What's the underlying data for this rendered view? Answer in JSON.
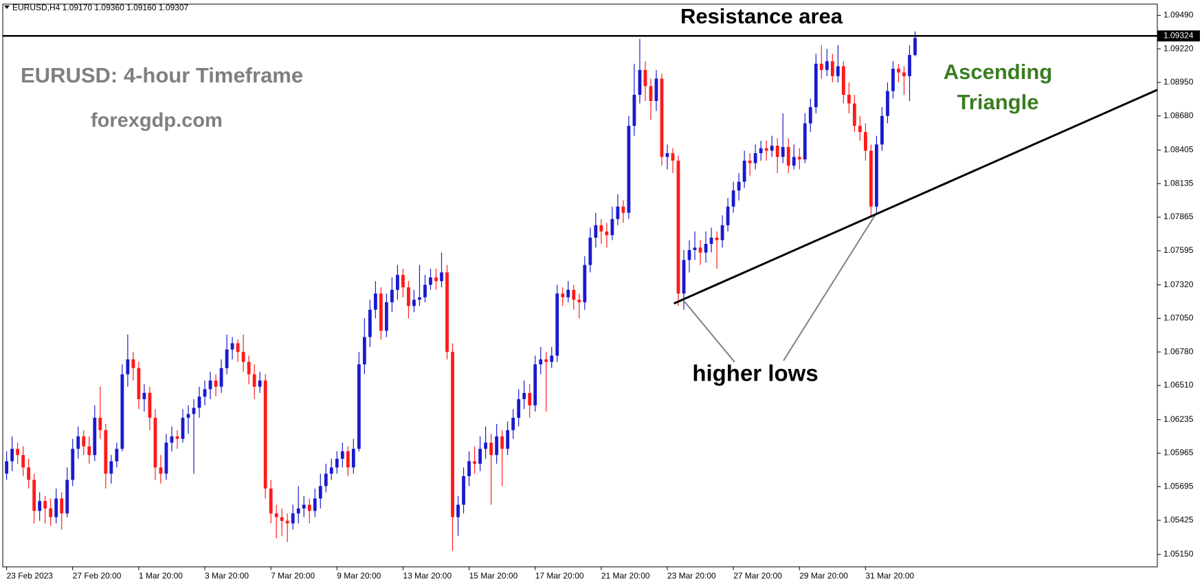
{
  "chart_data": {
    "type": "candlestick",
    "header": "EURUSD,H4  1.09170 1.09360 1.09160 1.09307",
    "title": "Resistance area",
    "subtitle": "EURUSD: 4-hour Timeframe",
    "source": "forexgdp.com",
    "pattern_label": [
      "Ascending",
      "Triangle"
    ],
    "annotation": "higher lows",
    "up_color": "#1a1acf",
    "down_color": "#ff1a1a",
    "xlim": [
      -0.7,
      209
    ],
    "ylim": [
      1.0505,
      1.0958
    ],
    "xticks": [
      {
        "value": 0,
        "label": "23 Feb 2023"
      },
      {
        "value": 12,
        "label": "27 Feb 20:00"
      },
      {
        "value": 24,
        "label": "1 Mar 20:00"
      },
      {
        "value": 36,
        "label": "3 Mar 20:00"
      },
      {
        "value": 48,
        "label": "7 Mar 20:00"
      },
      {
        "value": 60,
        "label": "9 Mar 20:00"
      },
      {
        "value": 72,
        "label": "13 Mar 20:00"
      },
      {
        "value": 84,
        "label": "15 Mar 20:00"
      },
      {
        "value": 96,
        "label": "17 Mar 20:00"
      },
      {
        "value": 108,
        "label": "21 Mar 20:00"
      },
      {
        "value": 120,
        "label": "23 Mar 20:00"
      },
      {
        "value": 132,
        "label": "27 Mar 20:00"
      },
      {
        "value": 144,
        "label": "29 Mar 20:00"
      },
      {
        "value": 156,
        "label": "31 Mar 20:00"
      }
    ],
    "yticks": [
      {
        "value": 1.0949,
        "label": "1.09490"
      },
      {
        "value": 1.0922,
        "label": "1.09220"
      },
      {
        "value": 1.0895,
        "label": "1.08950"
      },
      {
        "value": 1.0868,
        "label": "1.08680"
      },
      1.08405,
      1.08135,
      1.07865,
      1.07595,
      {
        "value": 1.0732,
        "label": "1.07320"
      },
      {
        "value": 1.0705,
        "label": "1.07050"
      },
      {
        "value": 1.0678,
        "label": "1.06780"
      },
      {
        "value": 1.0651,
        "label": "1.06510"
      },
      1.06235,
      1.05965,
      1.05695,
      1.05425,
      {
        "value": 1.0515,
        "label": "1.05150"
      }
    ],
    "resistance_level": {
      "value": 1.09324,
      "label": "1.09324"
    },
    "trendline": {
      "x": [
        121.2,
        209
      ],
      "y": [
        1.0717,
        1.0889
      ]
    },
    "ohlc": [
      [
        1.058,
        1.0598,
        1.0575,
        1.059
      ],
      [
        1.059,
        1.061,
        1.0582,
        1.06
      ],
      [
        1.06,
        1.0605,
        1.0588,
        1.0595
      ],
      [
        1.0595,
        1.0602,
        1.0578,
        1.0585
      ],
      [
        1.0585,
        1.0592,
        1.0568,
        1.0575
      ],
      [
        1.0575,
        1.058,
        1.054,
        1.055
      ],
      [
        1.055,
        1.0565,
        1.0542,
        1.0558
      ],
      [
        1.0558,
        1.0562,
        1.054,
        1.0552
      ],
      [
        1.0552,
        1.056,
        1.0538,
        1.0545
      ],
      [
        1.0545,
        1.0568,
        1.054,
        1.056
      ],
      [
        1.056,
        1.0565,
        1.0535,
        1.0548
      ],
      [
        1.0548,
        1.0585,
        1.0545,
        1.0575
      ],
      [
        1.0575,
        1.0608,
        1.057,
        1.06
      ],
      [
        1.06,
        1.0618,
        1.0592,
        1.061
      ],
      [
        1.061,
        1.0615,
        1.0595,
        1.0602
      ],
      [
        1.0602,
        1.061,
        1.0588,
        1.0595
      ],
      [
        1.0595,
        1.0635,
        1.059,
        1.0625
      ],
      [
        1.0625,
        1.065,
        1.0608,
        1.0615
      ],
      [
        1.0615,
        1.062,
        1.0568,
        1.058
      ],
      [
        1.058,
        1.0595,
        1.0572,
        1.059
      ],
      [
        1.059,
        1.0605,
        1.0585,
        1.06
      ],
      [
        1.06,
        1.0668,
        1.0598,
        1.066
      ],
      [
        1.066,
        1.0692,
        1.065,
        1.0672
      ],
      [
        1.0672,
        1.0678,
        1.0655,
        1.0665
      ],
      [
        1.0665,
        1.067,
        1.0632,
        1.064
      ],
      [
        1.064,
        1.0652,
        1.063,
        1.0645
      ],
      [
        1.0645,
        1.065,
        1.0615,
        1.0625
      ],
      [
        1.0625,
        1.0632,
        1.0575,
        1.0585
      ],
      [
        1.0585,
        1.0595,
        1.0572,
        1.058
      ],
      [
        1.058,
        1.0612,
        1.0575,
        1.0605
      ],
      [
        1.0605,
        1.0618,
        1.0598,
        1.061
      ],
      [
        1.061,
        1.0615,
        1.06,
        1.0608
      ],
      [
        1.0608,
        1.0632,
        1.0605,
        1.0625
      ],
      [
        1.0625,
        1.0635,
        1.0612,
        1.0628
      ],
      [
        1.0628,
        1.064,
        1.058,
        1.0633
      ],
      [
        1.0633,
        1.065,
        1.0625,
        1.0642
      ],
      [
        1.0642,
        1.0655,
        1.0635,
        1.0648
      ],
      [
        1.0648,
        1.0662,
        1.064,
        1.0655
      ],
      [
        1.0655,
        1.066,
        1.0642,
        1.065
      ],
      [
        1.065,
        1.0672,
        1.0645,
        1.0665
      ],
      [
        1.0665,
        1.0692,
        1.066,
        1.068
      ],
      [
        1.068,
        1.069,
        1.0672,
        1.0685
      ],
      [
        1.0685,
        1.0688,
        1.067,
        1.0678
      ],
      [
        1.0678,
        1.0692,
        1.0662,
        1.067
      ],
      [
        1.067,
        1.0675,
        1.0652,
        1.066
      ],
      [
        1.066,
        1.0668,
        1.064,
        1.065
      ],
      [
        1.065,
        1.0662,
        1.0645,
        1.0655
      ],
      [
        1.0655,
        1.066,
        1.056,
        1.0568
      ],
      [
        1.0568,
        1.0575,
        1.054,
        1.0548
      ],
      [
        1.0548,
        1.0555,
        1.0528,
        1.0545
      ],
      [
        1.0545,
        1.0552,
        1.053,
        1.0542
      ],
      [
        1.0542,
        1.0548,
        1.0525,
        1.054
      ],
      [
        1.054,
        1.0555,
        1.0535,
        1.0548
      ],
      [
        1.0548,
        1.057,
        1.054,
        1.0552
      ],
      [
        1.0552,
        1.0562,
        1.0545,
        1.0555
      ],
      [
        1.0555,
        1.056,
        1.054,
        1.055
      ],
      [
        1.055,
        1.0568,
        1.0545,
        1.056
      ],
      [
        1.056,
        1.058,
        1.0552,
        1.057
      ],
      [
        1.057,
        1.0588,
        1.0565,
        1.058
      ],
      [
        1.058,
        1.0592,
        1.0575,
        1.0585
      ],
      [
        1.0585,
        1.0598,
        1.058,
        1.0592
      ],
      [
        1.0592,
        1.0605,
        1.0585,
        1.0598
      ],
      [
        1.0598,
        1.0602,
        1.0578,
        1.0585
      ],
      [
        1.0585,
        1.0608,
        1.058,
        1.06
      ],
      [
        1.06,
        1.0678,
        1.0598,
        1.0668
      ],
      [
        1.0668,
        1.0705,
        1.066,
        1.069
      ],
      [
        1.069,
        1.072,
        1.0682,
        1.0712
      ],
      [
        1.0712,
        1.0735,
        1.0705,
        1.0725
      ],
      [
        1.0725,
        1.073,
        1.0688,
        1.0695
      ],
      [
        1.0695,
        1.0725,
        1.069,
        1.0718
      ],
      [
        1.0718,
        1.0738,
        1.071,
        1.0728
      ],
      [
        1.0728,
        1.0748,
        1.072,
        1.074
      ],
      [
        1.074,
        1.0745,
        1.0722,
        1.073
      ],
      [
        1.073,
        1.0735,
        1.0705,
        1.0715
      ],
      [
        1.0715,
        1.0728,
        1.071,
        1.072
      ],
      [
        1.072,
        1.0748,
        1.0715,
        1.0722
      ],
      [
        1.0722,
        1.074,
        1.0718,
        1.0732
      ],
      [
        1.0732,
        1.0745,
        1.0728,
        1.0738
      ],
      [
        1.0738,
        1.0745,
        1.0728,
        1.0735
      ],
      [
        1.0735,
        1.0758,
        1.073,
        1.0742
      ],
      [
        1.0742,
        1.0748,
        1.0672,
        1.0678
      ],
      [
        1.0678,
        1.0685,
        1.0518,
        1.0545
      ],
      [
        1.0545,
        1.0562,
        1.053,
        1.0555
      ],
      [
        1.0555,
        1.0585,
        1.0548,
        1.0578
      ],
      [
        1.0578,
        1.0598,
        1.057,
        1.059
      ],
      [
        1.059,
        1.0602,
        1.058,
        1.0588
      ],
      [
        1.0588,
        1.061,
        1.0582,
        1.06
      ],
      [
        1.06,
        1.0618,
        1.0592,
        1.0605
      ],
      [
        1.0605,
        1.0612,
        1.0555,
        1.0595
      ],
      [
        1.0595,
        1.062,
        1.0588,
        1.061
      ],
      [
        1.061,
        1.0615,
        1.057,
        1.06
      ],
      [
        1.06,
        1.0622,
        1.0595,
        1.0615
      ],
      [
        1.0615,
        1.0632,
        1.0608,
        1.0625
      ],
      [
        1.0625,
        1.0648,
        1.0618,
        1.064
      ],
      [
        1.064,
        1.0655,
        1.0632,
        1.0645
      ],
      [
        1.0645,
        1.0652,
        1.0625,
        1.0635
      ],
      [
        1.0635,
        1.0675,
        1.063,
        1.0668
      ],
      [
        1.0668,
        1.0682,
        1.066,
        1.0672
      ],
      [
        1.0672,
        1.0678,
        1.063,
        1.067
      ],
      [
        1.067,
        1.0682,
        1.0665,
        1.0675
      ],
      [
        1.0675,
        1.0732,
        1.067,
        1.0725
      ],
      [
        1.0725,
        1.073,
        1.0715,
        1.0722
      ],
      [
        1.0722,
        1.0735,
        1.0718,
        1.0728
      ],
      [
        1.0728,
        1.0732,
        1.0712,
        1.072
      ],
      [
        1.072,
        1.0725,
        1.0705,
        1.0718
      ],
      [
        1.0718,
        1.0755,
        1.0712,
        1.0748
      ],
      [
        1.0748,
        1.0778,
        1.0742,
        1.077
      ],
      [
        1.077,
        1.079,
        1.0762,
        1.078
      ],
      [
        1.078,
        1.0785,
        1.0765,
        1.0775
      ],
      [
        1.0775,
        1.0782,
        1.0762,
        1.0772
      ],
      [
        1.0772,
        1.0795,
        1.0768,
        1.0785
      ],
      [
        1.0785,
        1.0805,
        1.078,
        1.0795
      ],
      [
        1.0795,
        1.08,
        1.0782,
        1.079
      ],
      [
        1.079,
        1.0868,
        1.0785,
        1.086
      ],
      [
        1.086,
        1.091,
        1.0852,
        1.0885
      ],
      [
        1.0885,
        1.093,
        1.0878,
        1.0905
      ],
      [
        1.0905,
        1.0912,
        1.088,
        1.0892
      ],
      [
        1.0892,
        1.0898,
        1.0865,
        1.088
      ],
      [
        1.088,
        1.0905,
        1.0872,
        1.0898
      ],
      [
        1.0898,
        1.0902,
        1.0828,
        1.0835
      ],
      [
        1.0835,
        1.0845,
        1.0825,
        1.0838
      ],
      [
        1.0838,
        1.0842,
        1.0822,
        1.0832
      ],
      [
        1.0832,
        1.0836,
        1.0715,
        1.0725
      ],
      [
        1.0725,
        1.076,
        1.0712,
        1.0752
      ],
      [
        1.0752,
        1.0768,
        1.0742,
        1.076
      ],
      [
        1.076,
        1.0775,
        1.0752,
        1.0762
      ],
      [
        1.0762,
        1.0768,
        1.0748,
        1.0758
      ],
      [
        1.0758,
        1.0775,
        1.075,
        1.0765
      ],
      [
        1.0765,
        1.0778,
        1.0758,
        1.077
      ],
      [
        1.077,
        1.0775,
        1.0745,
        1.0768
      ],
      [
        1.0768,
        1.0788,
        1.0762,
        1.078
      ],
      [
        1.078,
        1.0802,
        1.0775,
        1.0795
      ],
      [
        1.0795,
        1.0815,
        1.079,
        1.0808
      ],
      [
        1.0808,
        1.0822,
        1.08,
        1.0815
      ],
      [
        1.0815,
        1.084,
        1.081,
        1.0832
      ],
      [
        1.0832,
        1.0838,
        1.082,
        1.083
      ],
      [
        1.083,
        1.0845,
        1.0825,
        1.0838
      ],
      [
        1.0838,
        1.0848,
        1.0832,
        1.0842
      ],
      [
        1.0842,
        1.0848,
        1.0832,
        1.084
      ],
      [
        1.084,
        1.0852,
        1.0835,
        1.0844
      ],
      [
        1.0844,
        1.085,
        1.0822,
        1.0835
      ],
      [
        1.0835,
        1.087,
        1.083,
        1.0843
      ],
      [
        1.0843,
        1.085,
        1.0822,
        1.0828
      ],
      [
        1.0828,
        1.0845,
        1.0825,
        1.0835
      ],
      [
        1.0835,
        1.0842,
        1.0825,
        1.0833
      ],
      [
        1.0833,
        1.087,
        1.083,
        1.0862
      ],
      [
        1.0862,
        1.0882,
        1.0855,
        1.0875
      ],
      [
        1.0875,
        1.0918,
        1.087,
        1.091
      ],
      [
        1.091,
        1.0925,
        1.0898,
        1.0905
      ],
      [
        1.0905,
        1.0922,
        1.09,
        1.0912
      ],
      [
        1.0912,
        1.0918,
        1.0895,
        1.09
      ],
      [
        1.09,
        1.0925,
        1.0895,
        1.0908
      ],
      [
        1.0908,
        1.0912,
        1.0878,
        1.0885
      ],
      [
        1.0885,
        1.0895,
        1.087,
        1.0878
      ],
      [
        1.0878,
        1.0885,
        1.0855,
        1.086
      ],
      [
        1.086,
        1.0868,
        1.0848,
        1.0855
      ],
      [
        1.0855,
        1.0862,
        1.0832,
        1.084
      ],
      [
        1.084,
        1.0845,
        1.0788,
        1.0795
      ],
      [
        1.0795,
        1.0852,
        1.079,
        1.0845
      ],
      [
        1.0845,
        1.0875,
        1.084,
        1.0868
      ],
      [
        1.0868,
        1.0895,
        1.0862,
        1.0888
      ],
      [
        1.0888,
        1.0912,
        1.0882,
        1.0906
      ],
      [
        1.0906,
        1.091,
        1.0895,
        1.0903
      ],
      [
        1.0903,
        1.0908,
        1.0885,
        1.09
      ],
      [
        1.09,
        1.0925,
        1.088,
        1.0917
      ],
      [
        1.0917,
        1.0936,
        1.0916,
        1.09307
      ]
    ]
  }
}
